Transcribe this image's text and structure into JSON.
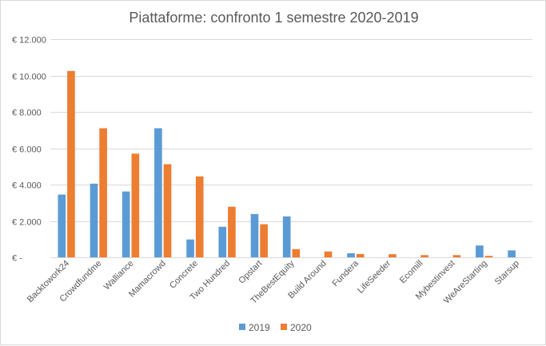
{
  "chart_data": {
    "type": "bar",
    "title": "Piattaforme: confronto 1 semestre 2020-2019",
    "xlabel": "",
    "ylabel": "",
    "ylim": [
      0,
      12000
    ],
    "yticks": [
      0,
      2000,
      4000,
      6000,
      8000,
      10000,
      12000
    ],
    "ytick_labels": [
      "€ -",
      "€ 2.000",
      "€ 4.000",
      "€ 6.000",
      "€ 8.000",
      "€ 10.000",
      "€ 12.000"
    ],
    "grid": true,
    "legend_position": "bottom",
    "categories": [
      "Backtowork24",
      "Crowdfundme",
      "Walliance",
      "Mamacrowd",
      "Concrete",
      "Two Hundred",
      "Opstart",
      "TheBestEquity",
      "Build Around",
      "Fundera",
      "LifeSeeder",
      "Ecomill",
      "Mybestinvest",
      "WeAreStarting",
      "Starsup"
    ],
    "series": [
      {
        "name": "2019",
        "color": "#5B9BD5",
        "values": [
          3450,
          4050,
          3620,
          7100,
          980,
          1680,
          2380,
          2250,
          0,
          220,
          0,
          0,
          0,
          650,
          380
        ]
      },
      {
        "name": "2020",
        "color": "#ED7D31",
        "values": [
          10250,
          7100,
          5700,
          5120,
          4450,
          2780,
          1820,
          450,
          320,
          180,
          170,
          120,
          120,
          80,
          0
        ]
      }
    ]
  }
}
